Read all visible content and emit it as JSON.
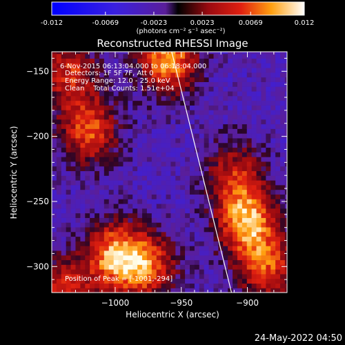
{
  "colorbar": {
    "tick_labels": [
      "-0.012",
      "-0.0069",
      "-0.0023",
      "0.0023",
      "0.0069",
      "0.012"
    ],
    "units": "(photons cm⁻² s⁻¹ asec⁻²)",
    "range": [
      -0.012,
      0.012
    ]
  },
  "chart_data": {
    "type": "heatmap",
    "title": "Reconstructed RHESSI Image",
    "xlabel": "Heliocentric X (arcsec)",
    "ylabel": "Heliocentric Y (arcsec)",
    "xlim": [
      -1048,
      -870
    ],
    "ylim": [
      -320,
      -135
    ],
    "x_ticks": [
      -1000,
      -950,
      -900
    ],
    "y_ticks": [
      -150,
      -200,
      -250,
      -300
    ],
    "x_tick_labels": [
      "−1000",
      "−950",
      "−900"
    ],
    "y_tick_labels": [
      "−150",
      "−200",
      "−250",
      "−300"
    ],
    "limb_line": {
      "x": [
        -958,
        -912
      ],
      "y": [
        -132,
        -320
      ]
    },
    "annotations": [
      "6-Nov-2015 06:13:04.000 to 06:18:04.000",
      "Detectors: 1F 5F 7F, Att 0",
      "Energy Range: 12.0 - 25.0 keV",
      "Clean    Total Counts: 1.51e+04"
    ],
    "peak_text": "Position of Peak = [-1001,-294]",
    "sources": [
      {
        "x": -1020,
        "y": -195,
        "value": 0.0095
      },
      {
        "x": -960,
        "y": -140,
        "value": 0.012
      },
      {
        "x": -1035,
        "y": -150,
        "value": 0.008
      },
      {
        "x": -1000,
        "y": -292,
        "value": 0.012
      },
      {
        "x": -975,
        "y": -300,
        "value": 0.009
      },
      {
        "x": -900,
        "y": -265,
        "value": 0.012
      },
      {
        "x": -885,
        "y": -300,
        "value": 0.009
      },
      {
        "x": -910,
        "y": -230,
        "value": 0.007
      },
      {
        "x": -1040,
        "y": -320,
        "value": 0.009
      }
    ]
  },
  "footer": {
    "date": "24-May-2022 04:50"
  }
}
